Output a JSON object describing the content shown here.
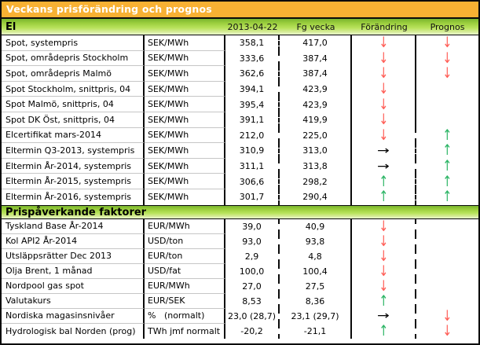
{
  "chart_data": {
    "type": "table",
    "title": "Veckans prisförändring och prognos",
    "column_headers": {
      "current": "2013-04-22",
      "previous": "Fg vecka",
      "change": "Förändring",
      "forecast": "Prognos"
    },
    "sections": [
      {
        "name": "El",
        "rows": [
          {
            "label": "Spot, systempris",
            "unit": "SEK/MWh",
            "current": "358,1",
            "previous": "417,0",
            "change": "down",
            "forecast": "down"
          },
          {
            "label": "Spot, områdepris Stockholm",
            "unit": "SEK/MWh",
            "current": "333,6",
            "previous": "387,4",
            "change": "down",
            "forecast": "down"
          },
          {
            "label": "Spot, områdepris Malmö",
            "unit": "SEK/MWh",
            "current": "362,6",
            "previous": "387,4",
            "change": "down",
            "forecast": "down"
          },
          {
            "label": "Spot Stockholm, snittpris,  04",
            "unit": "SEK/MWh",
            "current": "394,1",
            "previous": "423,9",
            "change": "down",
            "forecast": ""
          },
          {
            "label": "Spot Malmö, snittpris,  04",
            "unit": "SEK/MWh",
            "current": "395,4",
            "previous": "423,9",
            "change": "down",
            "forecast": ""
          },
          {
            "label": "Spot DK Öst, snittpris,  04",
            "unit": "SEK/MWh",
            "current": "391,1",
            "previous": "419,9",
            "change": "down",
            "forecast": ""
          },
          {
            "label": "Elcertifikat mars-2014",
            "unit": "SEK/MWh",
            "current": "212,0",
            "previous": "225,0",
            "change": "down",
            "forecast": "up",
            "dashed_forecast_border": true
          },
          {
            "label": "Eltermin Q3-2013, systempris",
            "unit": "SEK/MWh",
            "current": "310,9",
            "previous": "313,0",
            "change": "flat",
            "forecast": "up",
            "dashed_forecast_border": true
          },
          {
            "label": "Eltermin År-2014, systempris",
            "unit": "SEK/MWh",
            "current": "311,1",
            "previous": "313,8",
            "change": "flat",
            "forecast": "up",
            "dashed_forecast_border": true
          },
          {
            "label": "Eltermin År-2015, systempris",
            "unit": "SEK/MWh",
            "current": "306,6",
            "previous": "298,2",
            "change": "up",
            "forecast": "up",
            "dashed_forecast_border": true
          },
          {
            "label": "Eltermin År-2016, systempris",
            "unit": "SEK/MWh",
            "current": "301,7",
            "previous": "290,4",
            "change": "up",
            "forecast": "up",
            "dashed_forecast_border": true
          }
        ]
      },
      {
        "name": "Prispåverkande faktorer",
        "rows": [
          {
            "label": "Tyskland Base År-2014",
            "unit": "EUR/MWh",
            "current": "39,0",
            "previous": "40,9",
            "change": "down",
            "forecast": ""
          },
          {
            "label": "Kol API2 År-2014",
            "unit": "USD/ton",
            "current": "93,0",
            "previous": "93,8",
            "change": "down",
            "forecast": ""
          },
          {
            "label": "Utsläppsrätter Dec 2013",
            "unit": "EUR/ton",
            "current": "2,9",
            "previous": "4,8",
            "change": "down",
            "forecast": ""
          },
          {
            "label": "Olja Brent, 1 månad",
            "unit": "USD/fat",
            "current": "100,0",
            "previous": "100,4",
            "change": "down",
            "forecast": ""
          },
          {
            "label": "Nordpool gas spot",
            "unit": "EUR/MWh",
            "current": "27,0",
            "previous": "27,5",
            "change": "down",
            "forecast": ""
          },
          {
            "label": "Valutakurs",
            "unit": "EUR/SEK",
            "current": "8,53",
            "previous": "8,36",
            "change": "up",
            "forecast": ""
          },
          {
            "label": "Nordiska magasinsnivåer",
            "unit": "%   (normalt)",
            "current": "23,0 (28,7)",
            "previous": "23,1 (29,7)",
            "change": "flat",
            "forecast": "down"
          },
          {
            "label": "Hydrologisk bal Norden (prog)",
            "unit": "TWh jmf normalt",
            "current": "-20,2",
            "previous": "-21,1",
            "change": "up",
            "forecast": "down"
          }
        ]
      }
    ]
  },
  "arrows": {
    "down": "↓",
    "up": "↑",
    "flat": "→"
  },
  "colors": {
    "orange_header": "#f8b133",
    "green_header_top": "#7ab52e",
    "green_header_mid": "#b9e35c",
    "green_header_bottom": "#e9f6cd",
    "arrow_red": "#ff5f58",
    "arrow_green": "#2db566",
    "arrow_flat": "#000000"
  }
}
